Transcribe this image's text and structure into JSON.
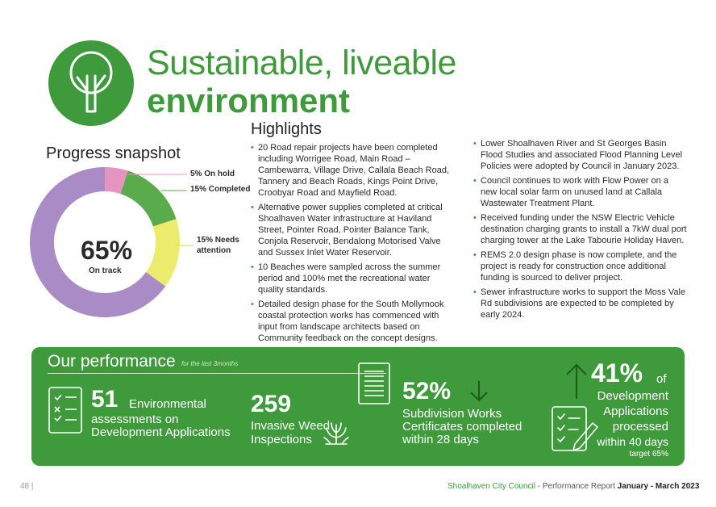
{
  "header": {
    "title_line1": "Sustainable, liveable",
    "title_line2": "environment",
    "logo_icon": "tree-icon"
  },
  "highlights": {
    "title": "Highlights",
    "col1": [
      "20 Road repair projects have been completed including Worrigee Road, Main Road – Cambewarra, Village Drive, Callala Beach Road, Tannery and Beach Roads, Kings Point Drive, Croobyar Road and Mayfield Road.",
      "Alternative power supplies completed at critical Shoalhaven Water infrastructure at Haviland Street, Pointer Road, Pointer Balance Tank, Conjola Reservoir, Bendalong Motorised Valve and Sussex Inlet Water Reservoir.",
      "10 Beaches were sampled across the summer period and 100% met the recreational water quality standards.",
      "Detailed design phase for the South Mollymook coastal protection works has commenced with input from landscape architects based on Community feedback on the concept designs."
    ],
    "col2": [
      "Lower Shoalhaven River and St Georges Basin Flood Studies and associated Flood Planning Level Policies were adopted by Council in January 2023.",
      "Council continues to work with Flow Power on a new local solar farm on unused land at Callala Wastewater Treatment Plant.",
      "Received funding under the NSW Electric Vehicle destination charging grants to install a 7kW dual port charging tower at the Lake Tabourie Holiday Haven.",
      "REMS 2.0 design phase is now complete, and the project is ready for construction once additional funding is sourced to deliver project.",
      "Sewer infrastructure works to support the Moss Vale Rd subdivisions are expected to be completed by early 2024."
    ]
  },
  "progress": {
    "title": "Progress snapshot",
    "center_value": "65%",
    "center_label": "On track",
    "labels": {
      "on_hold": "5% On hold",
      "completed": "15% Completed",
      "needs_attention_1": "15% Needs",
      "needs_attention_2": "attention"
    }
  },
  "chart_data": {
    "type": "pie",
    "categories": [
      "On hold",
      "Completed",
      "Needs attention",
      "On track"
    ],
    "values": [
      5,
      15,
      15,
      65
    ],
    "colors": [
      "#e594bf",
      "#5aab4c",
      "#ecec6c",
      "#a98bc6"
    ]
  },
  "performance": {
    "title": "Our performance",
    "subtitle": "for the last 3months",
    "stat1": {
      "value": "51",
      "text1": "Environmental",
      "text2": "assessments on",
      "text3": "Development Applications",
      "icon": "checklist-icon"
    },
    "stat2": {
      "value": "259",
      "text1": "Invasive Weed",
      "text2": "Inspections",
      "icon": "plant-icon"
    },
    "stat3": {
      "value": "52%",
      "text1": "Subdivision Works",
      "text2": "Certificates completed",
      "text3": "within 28 days",
      "icon": "document-icon",
      "trend_icon": "arrow-down-icon"
    },
    "stat4": {
      "value": "41%",
      "of": "of",
      "text1": "Development",
      "text2": "Applications",
      "text3": "processed",
      "text4": "within 40 days",
      "target": "target 65%",
      "icon": "checklist-pen-icon",
      "trend_icon": "arrow-up-icon"
    }
  },
  "footer": {
    "page": "48  |",
    "org": "Shoalhaven City Council",
    "report": " - Performance Report ",
    "period": "January - March 2023"
  }
}
